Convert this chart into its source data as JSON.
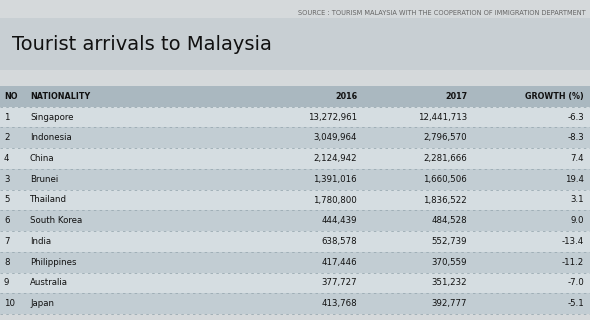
{
  "source_text": "SOURCE : TOURISM MALAYSIA WITH THE COOPERATION OF IMMIGRATION DEPARTMENT",
  "title": "Tourist arrivals to Malaysia",
  "columns": [
    "NO",
    "NATIONALITY",
    "2016",
    "2017",
    "GROWTH (%)"
  ],
  "rows": [
    [
      "1",
      "Singapore",
      "13,272,961",
      "12,441,713",
      "-6.3"
    ],
    [
      "2",
      "Indonesia",
      "3,049,964",
      "2,796,570",
      "-8.3"
    ],
    [
      "4",
      "China",
      "2,124,942",
      "2,281,666",
      "7.4"
    ],
    [
      "3",
      "Brunei",
      "1,391,016",
      "1,660,506",
      "19.4"
    ],
    [
      "5",
      "Thailand",
      "1,780,800",
      "1,836,522",
      "3.1"
    ],
    [
      "6",
      "South Korea",
      "444,439",
      "484,528",
      "9.0"
    ],
    [
      "7",
      "India",
      "638,578",
      "552,739",
      "-13.4"
    ],
    [
      "8",
      "Philippines",
      "417,446",
      "370,559",
      "-11.2"
    ],
    [
      "9",
      "Australia",
      "377,727",
      "351,232",
      "-7.0"
    ],
    [
      "10",
      "Japan",
      "413,768",
      "392,777",
      "-5.1"
    ]
  ],
  "bg_color": "#d5d9db",
  "title_bg": "#c8cfd3",
  "header_bg": "#aab8c0",
  "row_bg_odd": "#d5dde1",
  "row_bg_even": "#c2cdd3",
  "divider_color": "#9aaab2",
  "source_color": "#666666",
  "title_color": "#111111",
  "header_color": "#111111",
  "cell_color": "#111111",
  "title_fontsize": 14,
  "header_fontsize": 5.8,
  "cell_fontsize": 6.2,
  "source_fontsize": 4.8
}
